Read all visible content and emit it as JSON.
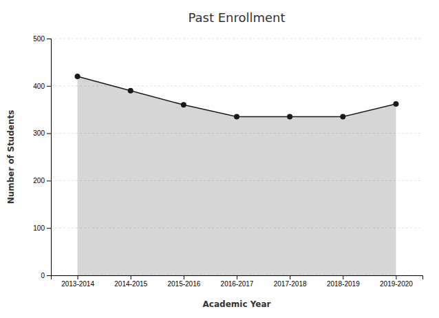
{
  "chart_data": {
    "type": "area",
    "title": "Past Enrollment",
    "xlabel": "Academic Year",
    "ylabel": "Number of Students",
    "categories": [
      "2013-2014",
      "2014-2015",
      "2015-2016",
      "2016-2017",
      "2017-2018",
      "2018-2019",
      "2019-2020"
    ],
    "values": [
      420,
      390,
      360,
      335,
      335,
      335,
      362
    ],
    "color": "#1a1a1a",
    "marker": "circle",
    "ylim": [
      0,
      500
    ],
    "yticks": [
      0,
      100,
      200,
      300,
      400,
      500
    ],
    "grid": true
  }
}
